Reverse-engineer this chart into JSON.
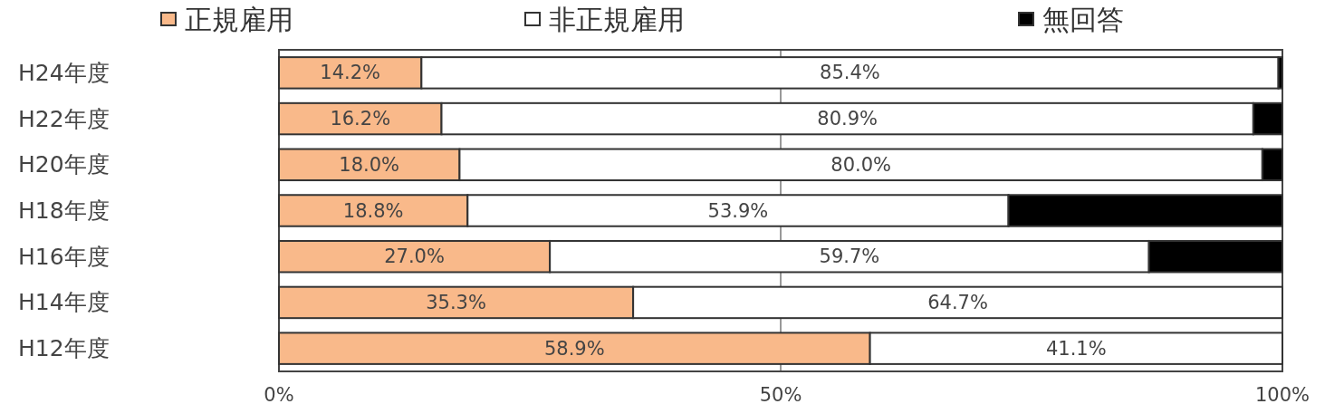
{
  "chart_data": {
    "type": "bar",
    "orientation": "horizontal",
    "stacked": true,
    "categories": [
      "H24年度",
      "H22年度",
      "H20年度",
      "H18年度",
      "H16年度",
      "H14年度",
      "H12年度"
    ],
    "series": [
      {
        "name": "正規雇用",
        "color": "#f9b98a",
        "values": [
          14.2,
          16.2,
          18.0,
          18.8,
          27.0,
          35.3,
          58.9
        ],
        "value_labels": [
          "14.2%",
          "16.2%",
          "18.0%",
          "18.8%",
          "27.0%",
          "35.3%",
          "58.9%"
        ]
      },
      {
        "name": "非正規雇用",
        "color": "#ffffff",
        "values": [
          85.4,
          80.9,
          80.0,
          53.9,
          59.7,
          64.7,
          41.1
        ],
        "value_labels": [
          "85.4%",
          "80.9%",
          "80.0%",
          "53.9%",
          "59.7%",
          "64.7%",
          "41.1%"
        ]
      },
      {
        "name": "無回答",
        "color": "#000000",
        "values": [
          0.4,
          2.9,
          2.0,
          27.3,
          13.3,
          0,
          0
        ]
      }
    ],
    "xlim": [
      0,
      100
    ],
    "xticks": [
      {
        "value": 0,
        "label": "0%"
      },
      {
        "value": 50,
        "label": "50%"
      },
      {
        "value": 100,
        "label": "100%"
      }
    ],
    "grid": "x",
    "legend": "top"
  }
}
